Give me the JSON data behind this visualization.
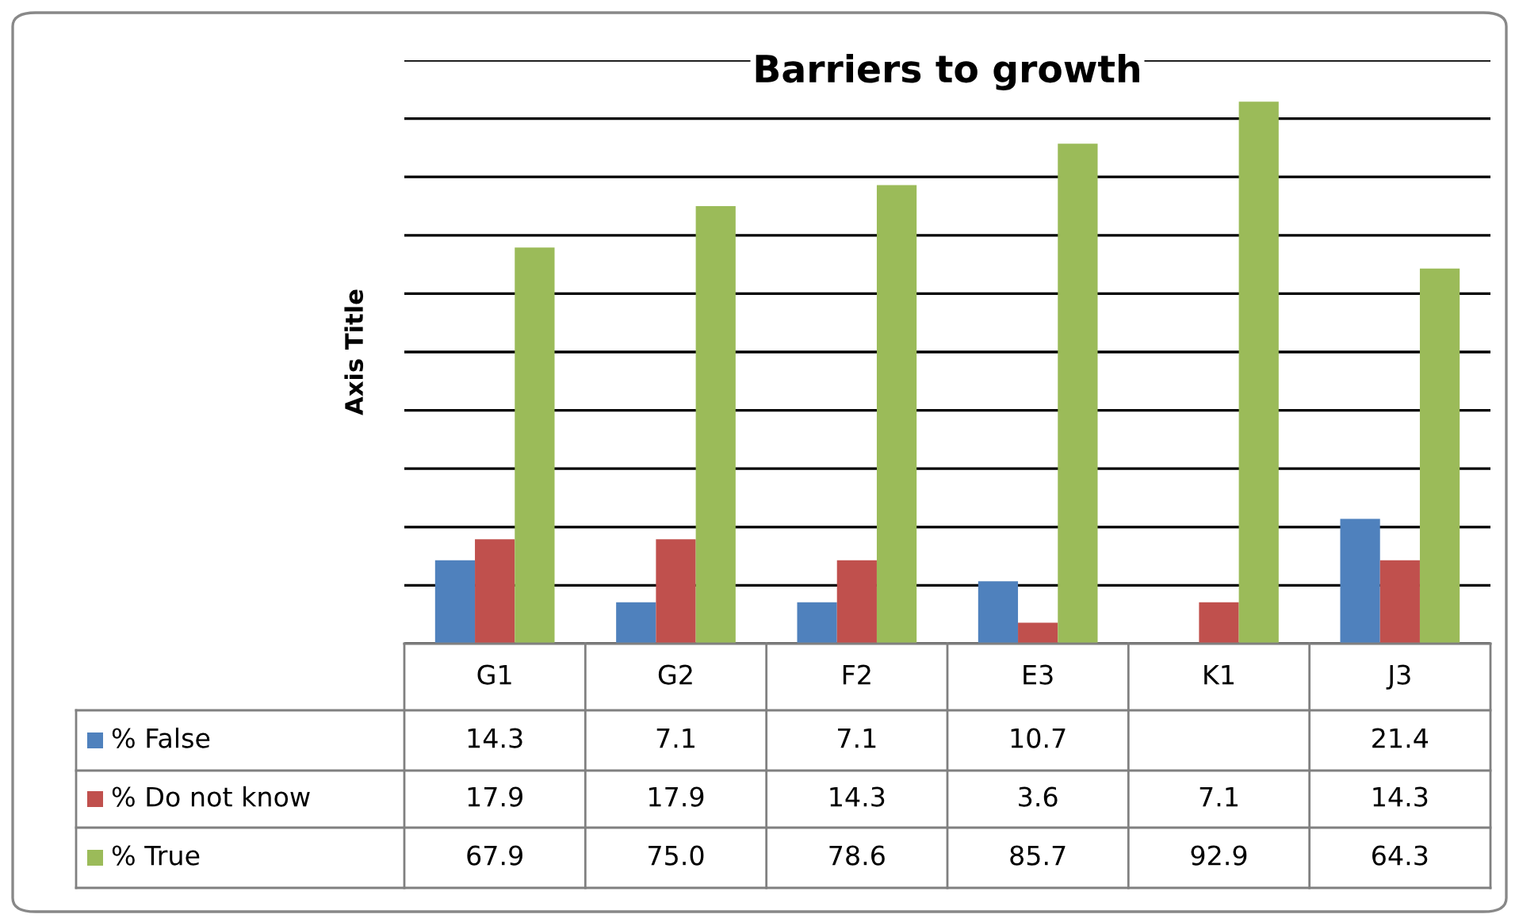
{
  "chart_data": {
    "type": "bar",
    "title": "Barriers to growth",
    "ylabel": "Axis Title",
    "categories": [
      "G1",
      "G2",
      "F2",
      "E3",
      "K1",
      "J3"
    ],
    "series": [
      {
        "name": "% False",
        "color": "#4f81bd",
        "values": [
          14.3,
          7.1,
          7.1,
          10.7,
          null,
          21.4
        ],
        "value_labels": [
          "14.3",
          "7.1",
          "7.1",
          "10.7",
          null,
          "21.4"
        ]
      },
      {
        "name": "% Do not know",
        "color": "#c0504d",
        "values": [
          17.9,
          17.9,
          14.3,
          3.6,
          7.1,
          14.3
        ],
        "value_labels": [
          "17.9",
          "17.9",
          "14.3",
          "3.6",
          "7.1",
          "14.3"
        ]
      },
      {
        "name": "% True",
        "color": "#9bbb59",
        "values": [
          67.9,
          75.0,
          78.6,
          85.7,
          92.9,
          64.3
        ],
        "value_labels": [
          "67.9",
          "75.0",
          "78.6",
          "85.7",
          "92.9",
          "64.3"
        ]
      }
    ],
    "ylim": [
      0,
      100
    ],
    "yticks": [
      {
        "value": 0,
        "label": null
      },
      {
        "value": 10,
        "label": null
      },
      {
        "value": 20,
        "label": null
      },
      {
        "value": 30,
        "label": null
      },
      {
        "value": 40,
        "label": null
      },
      {
        "value": 50,
        "label": null
      },
      {
        "value": 60,
        "label": null
      },
      {
        "value": 70,
        "label": null
      },
      {
        "value": 80,
        "label": null
      },
      {
        "value": 90,
        "label": null
      },
      {
        "value": 100,
        "label": null
      }
    ],
    "grid": "y",
    "legend": "bottom"
  }
}
